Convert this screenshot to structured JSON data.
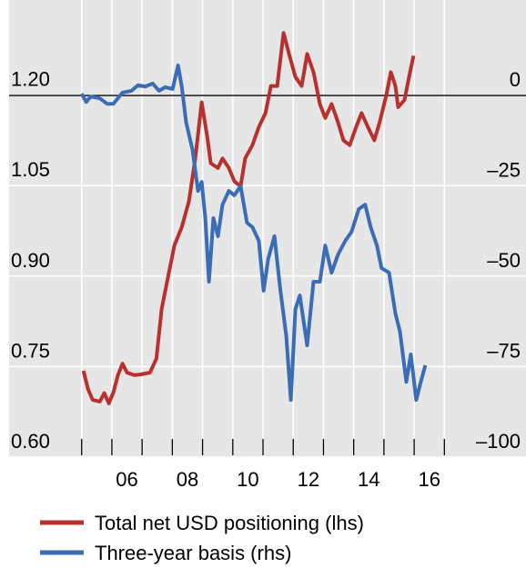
{
  "chart_data": {
    "type": "line",
    "series": [
      {
        "name": "Total net USD positioning (lhs)",
        "color": "#b8312f",
        "axis": "y",
        "x": [
          2005.06,
          2005.21,
          2005.36,
          2005.6,
          2005.75,
          2005.9,
          2006.05,
          2006.2,
          2006.35,
          2006.5,
          2006.74,
          2006.95,
          2007.26,
          2007.47,
          2007.65,
          2007.86,
          2008.07,
          2008.31,
          2008.55,
          2008.76,
          2008.97,
          2009.15,
          2009.27,
          2009.51,
          2009.66,
          2009.87,
          2010.05,
          2010.26,
          2010.41,
          2010.65,
          2010.86,
          2011.08,
          2011.26,
          2011.47,
          2011.68,
          2011.86,
          2012.07,
          2012.28,
          2012.46,
          2012.67,
          2012.88,
          2013.06,
          2013.27,
          2013.48,
          2013.66,
          2013.87,
          2014.08,
          2014.26,
          2014.47,
          2014.68,
          2014.86,
          2015.08,
          2015.23,
          2015.38,
          2015.47,
          2015.68,
          2015.83,
          2015.98
        ],
        "values": [
          0.743,
          0.713,
          0.695,
          0.692,
          0.706,
          0.689,
          0.707,
          0.736,
          0.755,
          0.74,
          0.736,
          0.737,
          0.74,
          0.763,
          0.846,
          0.899,
          0.951,
          0.981,
          1.024,
          1.095,
          1.188,
          1.132,
          1.087,
          1.079,
          1.095,
          1.079,
          1.057,
          1.049,
          1.095,
          1.117,
          1.147,
          1.17,
          1.215,
          1.215,
          1.303,
          1.268,
          1.23,
          1.215,
          1.268,
          1.238,
          1.185,
          1.162,
          1.185,
          1.155,
          1.125,
          1.117,
          1.147,
          1.17,
          1.147,
          1.125,
          1.155,
          1.2,
          1.238,
          1.215,
          1.18,
          1.192,
          1.23,
          1.265
        ]
      },
      {
        "name": "Three-year basis (rhs)",
        "color": "#3a6db5",
        "axis": "y2",
        "x": [
          2005.0,
          2005.15,
          2005.3,
          2005.6,
          2005.84,
          2006.05,
          2006.35,
          2006.65,
          2006.86,
          2007.11,
          2007.35,
          2007.56,
          2007.77,
          2008.01,
          2008.19,
          2008.31,
          2008.46,
          2008.67,
          2008.85,
          2008.97,
          2009.09,
          2009.21,
          2009.36,
          2009.51,
          2009.66,
          2009.87,
          2010.05,
          2010.26,
          2010.47,
          2010.65,
          2010.86,
          2011.02,
          2011.17,
          2011.38,
          2011.56,
          2011.77,
          2011.92,
          2012.07,
          2012.22,
          2012.46,
          2012.67,
          2012.88,
          2013.06,
          2013.27,
          2013.48,
          2013.72,
          2013.93,
          2014.17,
          2014.38,
          2014.56,
          2014.77,
          2014.92,
          2015.17,
          2015.38,
          2015.53,
          2015.74,
          2015.89,
          2016.07,
          2016.22,
          2016.37
        ],
        "values": [
          0.5,
          -1.8,
          -0.3,
          -0.8,
          -2.3,
          -2.3,
          0.8,
          1.3,
          2.8,
          2.5,
          3.3,
          1.3,
          2.3,
          1.8,
          8.3,
          2.5,
          -7.5,
          -15.1,
          -26.4,
          -23.9,
          -33.9,
          -51.5,
          -33.9,
          -38.9,
          -30.2,
          -26.4,
          -27.6,
          -25.1,
          -35.2,
          -36.4,
          -40.2,
          -54.0,
          -45.2,
          -38.9,
          -52.8,
          -66.6,
          -84.2,
          -59.1,
          -55.3,
          -69.1,
          -51.5,
          -51.5,
          -41.5,
          -49.0,
          -44.0,
          -40.2,
          -37.7,
          -31.4,
          -30.2,
          -36.4,
          -41.5,
          -47.7,
          -49.0,
          -60.3,
          -65.3,
          -79.2,
          -71.6,
          -84.2,
          -79.2,
          -74.6
        ]
      }
    ],
    "xlim": [
      2002.6,
      2019.7
    ],
    "xticks": [
      {
        "value": 2006.5,
        "label": "06"
      },
      {
        "value": 2008.5,
        "label": "08"
      },
      {
        "value": 2010.5,
        "label": "10"
      },
      {
        "value": 2012.5,
        "label": "12"
      },
      {
        "value": 2014.5,
        "label": "14"
      },
      {
        "value": 2016.5,
        "label": "16"
      }
    ],
    "xminorticks": [
      2005,
      2006,
      2007,
      2008,
      2009,
      2010,
      2011,
      2012,
      2013,
      2014,
      2015,
      2016,
      2017
    ],
    "ylim": [
      0.6,
      1.3575
    ],
    "yticks": [
      {
        "value": 0.6,
        "label": "0.60"
      },
      {
        "value": 0.75,
        "label": "0.75"
      },
      {
        "value": 0.9,
        "label": "0.90"
      },
      {
        "value": 1.05,
        "label": "1.05"
      },
      {
        "value": 1.2,
        "label": "1.20"
      }
    ],
    "y2lim": [
      -100,
      26.4
    ],
    "y2ticks": [
      {
        "value": -100,
        "label": "–100"
      },
      {
        "value": -75,
        "label": "–75"
      },
      {
        "value": -50,
        "label": "–50"
      },
      {
        "value": -25,
        "label": "–25"
      },
      0
    ],
    "grid": true,
    "y2_zero_line": true
  }
}
